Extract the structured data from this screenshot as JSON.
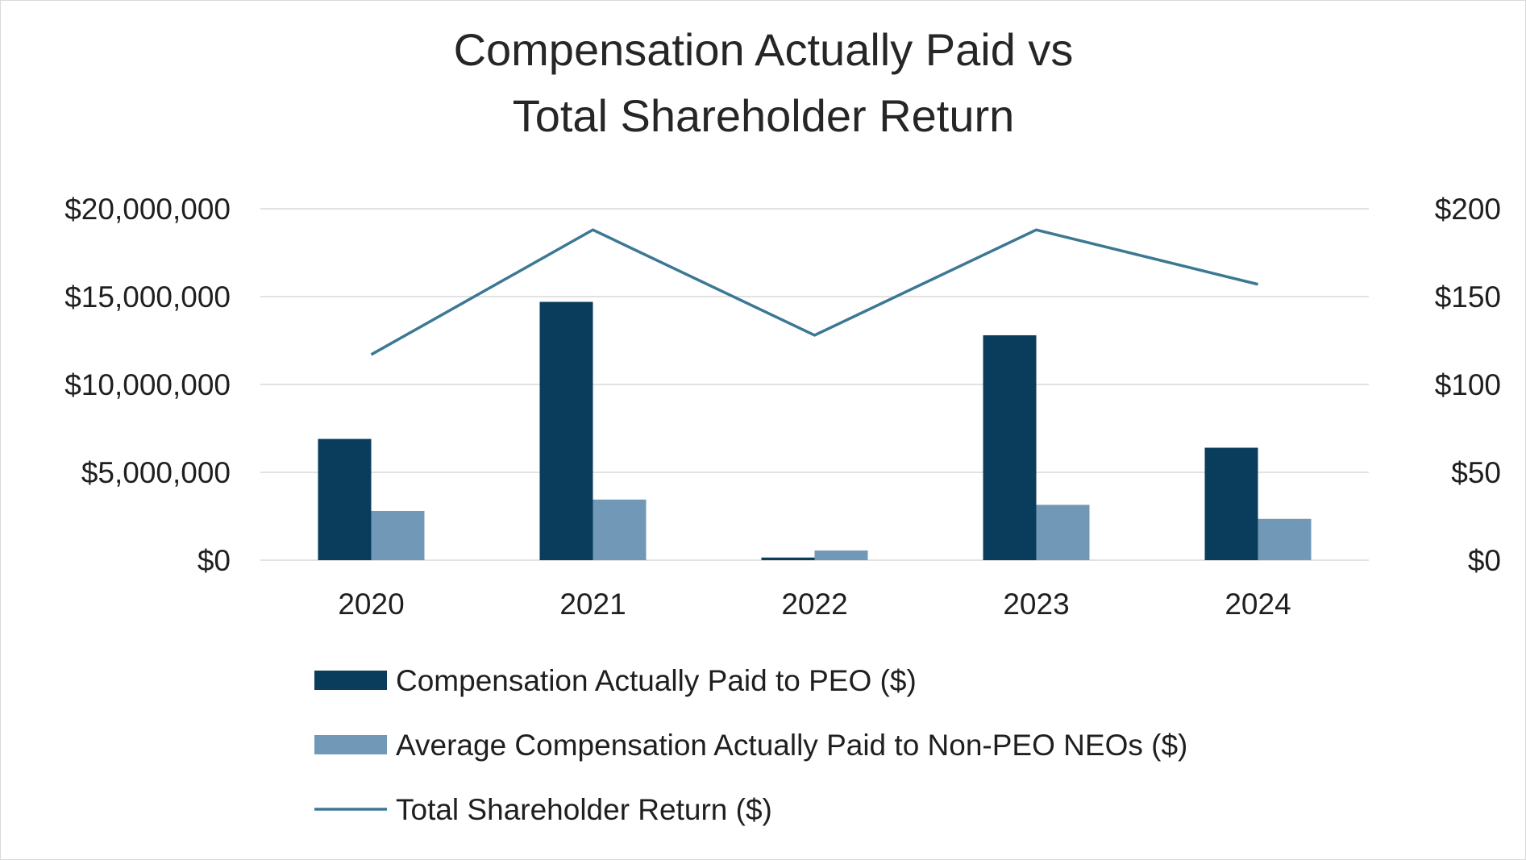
{
  "chart_data": {
    "type": "bar",
    "title_lines": [
      "Compensation Actually Paid vs",
      "Total Shareholder Return"
    ],
    "categories": [
      "2020",
      "2021",
      "2022",
      "2023",
      "2024"
    ],
    "series": [
      {
        "name": "Compensation Actually Paid to PEO ($)",
        "kind": "bar",
        "axis": "left",
        "color": "#0a3d5c",
        "values": [
          6900000,
          14700000,
          150000,
          12800000,
          6400000
        ]
      },
      {
        "name": "Average Compensation Actually Paid to Non-PEO NEOs ($)",
        "kind": "bar",
        "axis": "left",
        "color": "#7199b7",
        "values": [
          2800000,
          3450000,
          550000,
          3150000,
          2350000
        ]
      },
      {
        "name": "Total Shareholder Return ($)",
        "kind": "line",
        "axis": "right",
        "color": "#3c7894",
        "values": [
          117,
          188,
          128,
          188,
          157
        ]
      }
    ],
    "y_left": {
      "ylim": [
        0,
        20000000
      ],
      "ticks": [
        0,
        5000000,
        10000000,
        15000000,
        20000000
      ],
      "tick_labels": [
        "$0",
        "$5,000,000",
        "$10,000,000",
        "$15,000,000",
        "$20,000,000"
      ]
    },
    "y_right": {
      "ylim": [
        0,
        200
      ],
      "ticks": [
        0,
        50,
        100,
        150,
        200
      ],
      "tick_labels": [
        "$0",
        "$50",
        "$100",
        "$150",
        "$200"
      ]
    },
    "xlabel": "",
    "ylabel": "",
    "grid": true,
    "legend_position": "bottom",
    "colors": {
      "grid": "#d9d9d9",
      "text": "#1f1f1f",
      "title": "#262626"
    }
  }
}
